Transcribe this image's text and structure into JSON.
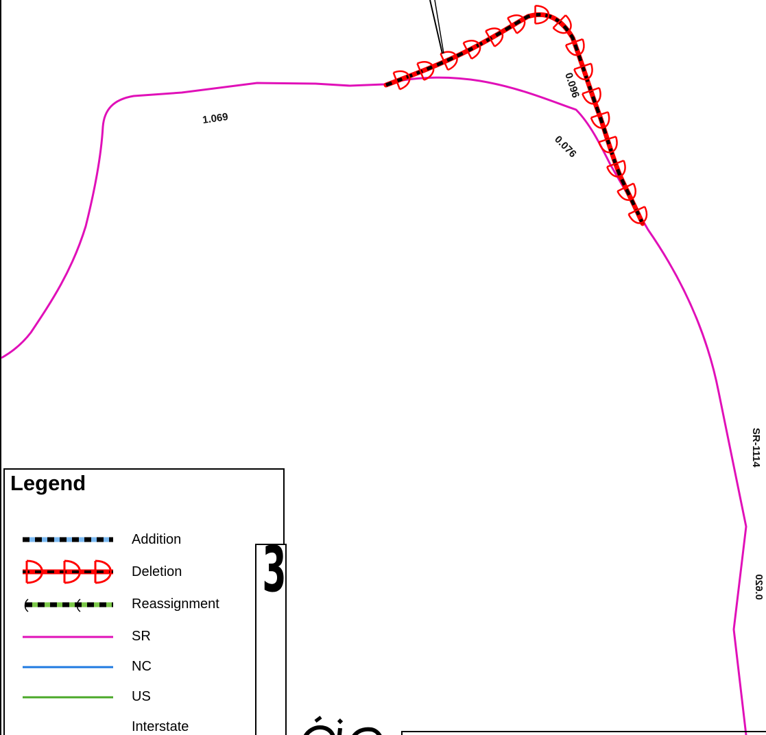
{
  "map": {
    "colors": {
      "sr": "#e010b8",
      "nc": "#1f7ae0",
      "us": "#4aa828",
      "deletion": "#ff0000",
      "addition_fill": "#7ab8f0",
      "reassignment_fill": "#7cc84a",
      "dash": "#000000"
    },
    "segment_labels": [
      {
        "id": "seg-1069",
        "text": "1.069"
      },
      {
        "id": "seg-0096",
        "text": "0.096"
      },
      {
        "id": "seg-0076",
        "text": "0.076"
      },
      {
        "id": "seg-0620",
        "text": "0.620"
      }
    ],
    "route_label": "SR-1114"
  },
  "legend": {
    "title": "Legend",
    "items": [
      {
        "label": "Addition",
        "symbol": "addition"
      },
      {
        "label": "Deletion",
        "symbol": "deletion"
      },
      {
        "label": "Reassignment",
        "symbol": "reassignment"
      },
      {
        "label": "SR",
        "symbol": "sr"
      },
      {
        "label": "NC",
        "symbol": "nc"
      },
      {
        "label": "US",
        "symbol": "us"
      },
      {
        "label": "Interstate",
        "symbol": "interstate"
      }
    ]
  },
  "sheet": {
    "number": "3"
  }
}
